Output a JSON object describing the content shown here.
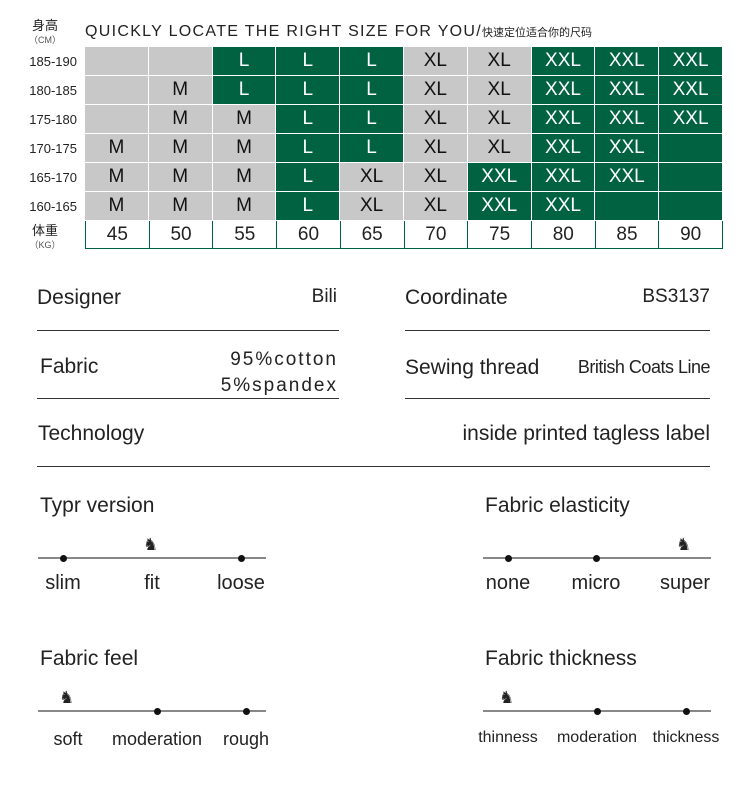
{
  "chart_header": {
    "height_label": "身高",
    "height_unit": "（CM）",
    "weight_label": "体重",
    "weight_unit": "（KG）",
    "title": "QUICKLY LOCATE THE RIGHT SIZE FOR YOU/",
    "title_cn": "快速定位适合你的尺码"
  },
  "weights": [
    "45",
    "50",
    "55",
    "60",
    "65",
    "70",
    "75",
    "80",
    "85",
    "90"
  ],
  "rows": [
    {
      "height": "185-190",
      "sizes": [
        "",
        "",
        "L",
        "L",
        "L",
        "XL",
        "XL",
        "XXL",
        "XXL",
        "XXL"
      ],
      "fills": [
        "gray",
        "gray",
        "green",
        "green",
        "green",
        "gray",
        "gray",
        "green",
        "green",
        "green"
      ]
    },
    {
      "height": "180-185",
      "sizes": [
        "",
        "M",
        "L",
        "L",
        "L",
        "XL",
        "XL",
        "XXL",
        "XXL",
        "XXL"
      ],
      "fills": [
        "gray",
        "gray",
        "green",
        "green",
        "green",
        "gray",
        "gray",
        "green",
        "green",
        "green"
      ]
    },
    {
      "height": "175-180",
      "sizes": [
        "",
        "M",
        "M",
        "L",
        "L",
        "XL",
        "XL",
        "XXL",
        "XXL",
        "XXL"
      ],
      "fills": [
        "gray",
        "gray",
        "gray",
        "green",
        "green",
        "gray",
        "gray",
        "green",
        "green",
        "green"
      ]
    },
    {
      "height": "170-175",
      "sizes": [
        "M",
        "M",
        "M",
        "L",
        "L",
        "XL",
        "XL",
        "XXL",
        "XXL",
        ""
      ],
      "fills": [
        "gray",
        "gray",
        "gray",
        "green",
        "green",
        "gray",
        "gray",
        "green",
        "green",
        "green"
      ]
    },
    {
      "height": "165-170",
      "sizes": [
        "M",
        "M",
        "M",
        "L",
        "XL",
        "XL",
        "XXL",
        "XXL",
        "XXL",
        ""
      ],
      "fills": [
        "gray",
        "gray",
        "gray",
        "green",
        "gray",
        "gray",
        "green",
        "green",
        "green",
        "green"
      ]
    },
    {
      "height": "160-165",
      "sizes": [
        "M",
        "M",
        "M",
        "L",
        "XL",
        "XL",
        "XXL",
        "XXL",
        "",
        ""
      ],
      "fills": [
        "gray",
        "gray",
        "gray",
        "green",
        "gray",
        "gray",
        "green",
        "green",
        "green",
        "green"
      ]
    }
  ],
  "colors": {
    "green": "#006241",
    "gray": "#c8c8c8"
  },
  "specs": {
    "designer_label": "Designer",
    "designer": "Bili",
    "coordinate_label": "Coordinate",
    "coordinate": "BS3137",
    "fabric_label": "Fabric",
    "fabric_1": "95%cotton",
    "fabric_2": "5%spandex",
    "thread_label": "Sewing thread",
    "thread": "British Coats Line",
    "technology_label": "Technology",
    "technology": "inside printed tagless label"
  },
  "scales": [
    {
      "title": "Typr version",
      "options": [
        "slim",
        "fit",
        "loose"
      ],
      "selected": 1
    },
    {
      "title": "Fabric elasticity",
      "options": [
        "none",
        "micro",
        "super"
      ],
      "selected": 2
    },
    {
      "title": "Fabric feel",
      "options": [
        "soft",
        "moderation",
        "rough"
      ],
      "selected": 0
    },
    {
      "title": "Fabric thickness",
      "options": [
        "thinness",
        "moderation",
        "thickness"
      ],
      "selected": 0
    }
  ]
}
